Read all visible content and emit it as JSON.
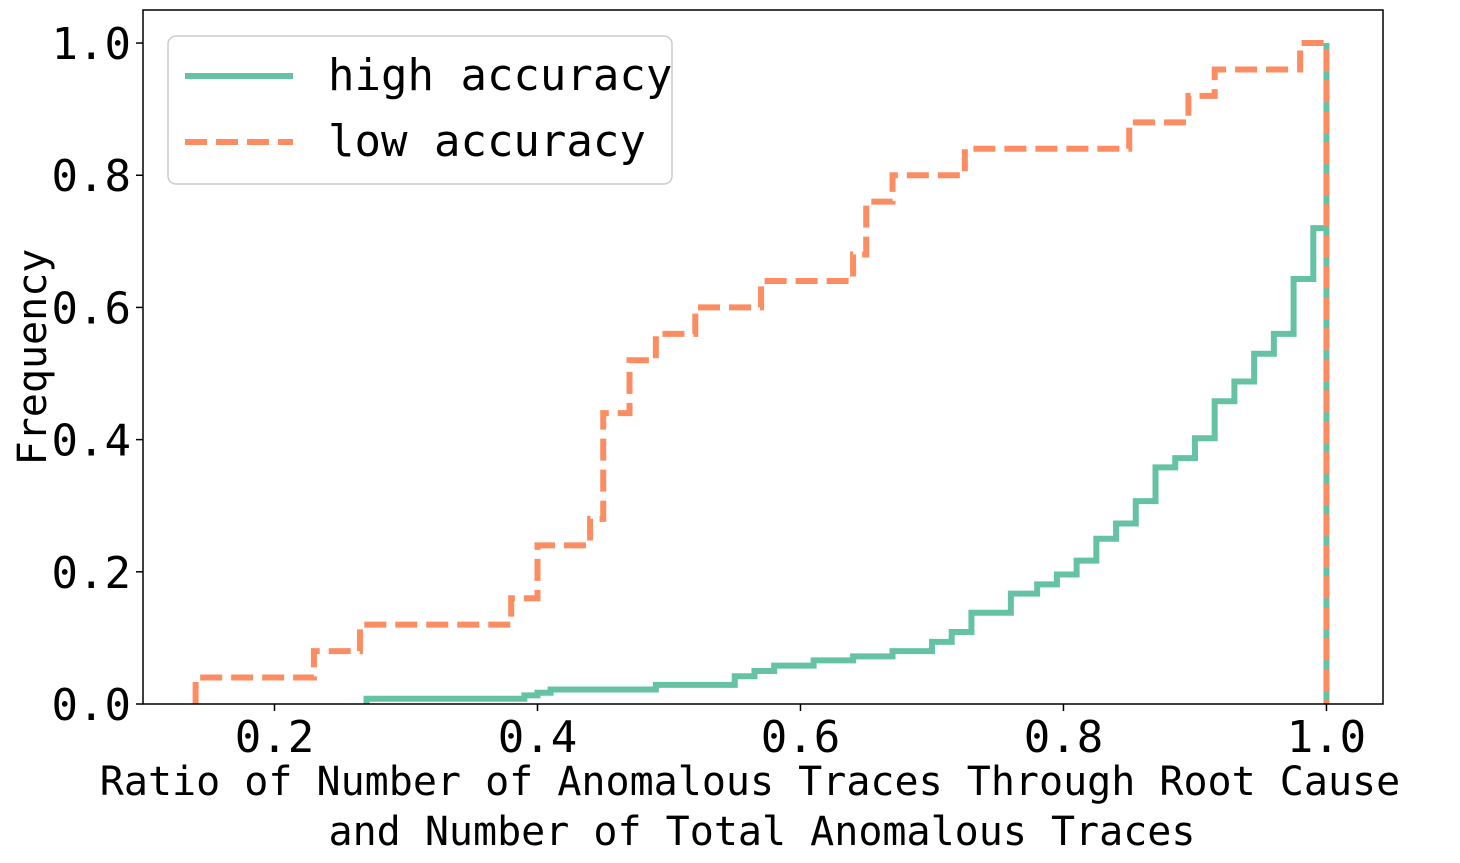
{
  "chart_data": {
    "type": "line",
    "subtype": "cumulative-step",
    "title": "",
    "xlabel_lines": [
      "Ratio of Number of Anomalous Traces Through Root Cause",
      "and Number of Total Anomalous Traces"
    ],
    "ylabel": "Frequency",
    "xlim": [
      0.1,
      1.043
    ],
    "ylim": [
      0,
      1.05
    ],
    "x_ticks": [
      0.2,
      0.4,
      0.6,
      0.8,
      1.0
    ],
    "x_tick_labels": [
      "0.2",
      "0.4",
      "0.6",
      "0.8",
      "1.0"
    ],
    "y_ticks": [
      0.0,
      0.2,
      0.4,
      0.6,
      0.8,
      1.0
    ],
    "y_tick_labels": [
      "0.0",
      "0.2",
      "0.4",
      "0.6",
      "0.8",
      "1.0"
    ],
    "grid": false,
    "legend_position": "upper-left",
    "series": [
      {
        "name": "high accuracy",
        "style": "solid",
        "color": "#66c2a5",
        "x": [
          0.27,
          0.39,
          0.4,
          0.41,
          0.49,
          0.55,
          0.565,
          0.58,
          0.61,
          0.64,
          0.67,
          0.7,
          0.715,
          0.73,
          0.76,
          0.78,
          0.795,
          0.81,
          0.825,
          0.84,
          0.855,
          0.87,
          0.885,
          0.9,
          0.915,
          0.93,
          0.945,
          0.96,
          0.975,
          0.99,
          1.0
        ],
        "y": [
          0.008,
          0.013,
          0.017,
          0.022,
          0.029,
          0.042,
          0.05,
          0.058,
          0.066,
          0.072,
          0.08,
          0.094,
          0.109,
          0.138,
          0.167,
          0.181,
          0.196,
          0.217,
          0.25,
          0.273,
          0.307,
          0.358,
          0.372,
          0.402,
          0.458,
          0.488,
          0.53,
          0.56,
          0.643,
          0.72,
          1.0
        ]
      },
      {
        "name": "low accuracy",
        "style": "dashed",
        "color": "#fc8d62",
        "x": [
          0.14,
          0.23,
          0.265,
          0.38,
          0.4,
          0.44,
          0.45,
          0.47,
          0.49,
          0.52,
          0.57,
          0.64,
          0.65,
          0.67,
          0.725,
          0.85,
          0.895,
          0.915,
          0.98,
          1.0
        ],
        "y": [
          0.04,
          0.08,
          0.12,
          0.16,
          0.24,
          0.28,
          0.44,
          0.52,
          0.56,
          0.6,
          0.64,
          0.68,
          0.76,
          0.8,
          0.84,
          0.88,
          0.92,
          0.96,
          1.0,
          1.0
        ]
      }
    ]
  }
}
